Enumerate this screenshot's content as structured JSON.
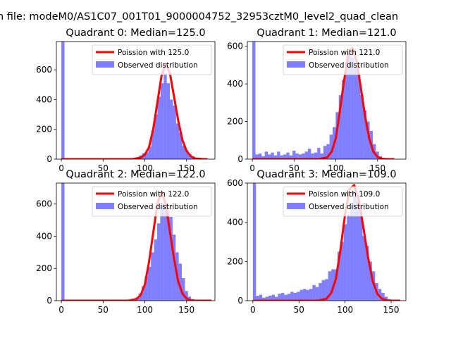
{
  "page_title": "n file: modeM0/AS1C07_001T01_9000004752_32953cztM0_level2_quad_clean",
  "colors": {
    "hist": "#0000ff",
    "hist_alpha": 0.5,
    "fit": "#ff0000",
    "axis": "#000000"
  },
  "chart_data": [
    {
      "type": "bar",
      "title": "Quadrant 0: Median=125.0",
      "median": 125.0,
      "xlim": [
        -6,
        184
      ],
      "ylim": [
        0,
        790
      ],
      "xticks": [
        0,
        50,
        100,
        150
      ],
      "yticks": [
        0,
        200,
        400,
        600
      ],
      "bin_width": 3.7,
      "legend": {
        "position": "upper-right",
        "fit_label": "Poission with 125.0",
        "hist_label": "Observed distribution"
      },
      "zero_spike": 790,
      "fit_line": {
        "x": [
          0,
          85,
          95,
          100,
          105,
          110,
          115,
          120,
          125,
          130,
          135,
          140,
          145,
          150,
          155,
          160,
          170,
          175
        ],
        "y": [
          0,
          0,
          10,
          30,
          80,
          200,
          380,
          560,
          640,
          580,
          420,
          260,
          130,
          55,
          20,
          5,
          0,
          0
        ]
      },
      "hist": {
        "x": [
          93,
          96.7,
          100.4,
          104.1,
          107.8,
          111.5,
          115.2,
          118.9,
          122.6,
          126.3,
          130,
          133.7,
          137.4,
          141.1,
          144.8,
          148.5,
          152.2,
          155.9,
          159.6,
          163.3
        ],
        "y": [
          25,
          40,
          45,
          85,
          195,
          300,
          420,
          510,
          580,
          510,
          400,
          360,
          240,
          180,
          90,
          60,
          35,
          20,
          10,
          5
        ]
      }
    },
    {
      "type": "bar",
      "title": "Quadrant 1: Median=121.0",
      "median": 121.0,
      "xlim": [
        -6,
        184
      ],
      "ylim": [
        0,
        625
      ],
      "xticks": [
        0,
        50,
        100,
        150
      ],
      "yticks": [
        0,
        200,
        400,
        600
      ],
      "bin_width": 3.7,
      "legend": {
        "position": "upper-right",
        "fit_label": "Poission with 121.0",
        "hist_label": "Observed distribution"
      },
      "zero_spike": 625,
      "fit_line": {
        "x": [
          0,
          80,
          90,
          95,
          100,
          105,
          110,
          115,
          120,
          125,
          130,
          135,
          140,
          145,
          150,
          155,
          160,
          170
        ],
        "y": [
          0,
          0,
          10,
          40,
          110,
          260,
          420,
          560,
          590,
          520,
          380,
          230,
          110,
          40,
          12,
          3,
          0,
          0
        ]
      },
      "hist": {
        "x": [
          3.7,
          7.4,
          11.1,
          14.8,
          18.5,
          22.2,
          25.9,
          29.6,
          33.3,
          37,
          40.7,
          44.4,
          48.1,
          51.8,
          55.5,
          59.2,
          62.9,
          66.6,
          70.3,
          74,
          77.7,
          81.4,
          85.1,
          88.8,
          92.5,
          96.2,
          99.9,
          103.6,
          107.3,
          111,
          114.7,
          118.4,
          122.1,
          125.8,
          129.5,
          133.2,
          136.9,
          140.6,
          144.3,
          148,
          151.7,
          155.4
        ],
        "y": [
          25,
          30,
          15,
          40,
          25,
          35,
          20,
          40,
          20,
          25,
          35,
          20,
          45,
          30,
          25,
          30,
          40,
          55,
          30,
          35,
          60,
          30,
          70,
          80,
          130,
          170,
          250,
          340,
          420,
          520,
          560,
          540,
          500,
          450,
          340,
          260,
          200,
          150,
          80,
          40,
          15,
          5
        ]
      }
    },
    {
      "type": "bar",
      "title": "Quadrant 2: Median=122.0",
      "median": 122.0,
      "xlim": [
        -6,
        184
      ],
      "ylim": [
        0,
        730
      ],
      "xticks": [
        0,
        50,
        100,
        150
      ],
      "yticks": [
        0,
        200,
        400,
        600
      ],
      "bin_width": 3.7,
      "legend": {
        "position": "upper-right",
        "fit_label": "Poission with 122.0",
        "hist_label": "Observed distribution"
      },
      "zero_spike": 730,
      "fit_line": {
        "x": [
          0,
          80,
          90,
          95,
          100,
          105,
          110,
          115,
          120,
          125,
          130,
          135,
          140,
          145,
          150,
          155,
          160,
          180
        ],
        "y": [
          0,
          0,
          10,
          35,
          100,
          240,
          420,
          600,
          680,
          600,
          430,
          260,
          120,
          45,
          12,
          3,
          0,
          0
        ]
      },
      "hist": {
        "x": [
          88.8,
          92.5,
          96.2,
          99.9,
          103.6,
          107.3,
          111,
          114.7,
          118.4,
          122.1,
          125.8,
          129.5,
          133.2,
          136.9,
          140.6,
          144.3,
          148,
          151.7,
          155.4,
          159.1
        ],
        "y": [
          20,
          45,
          90,
          150,
          210,
          300,
          380,
          480,
          600,
          610,
          560,
          520,
          410,
          300,
          230,
          140,
          60,
          25,
          10,
          5
        ]
      }
    },
    {
      "type": "bar",
      "title": "Quadrant 3: Median=109.0",
      "median": 109.0,
      "xlim": [
        -6,
        166
      ],
      "ylim": [
        0,
        600
      ],
      "xticks": [
        0,
        50,
        100,
        150
      ],
      "yticks": [
        0,
        200,
        400,
        600
      ],
      "bin_width": 3.4,
      "legend": {
        "position": "upper-right",
        "fit_label": "Poission with 109.0",
        "hist_label": "Observed distribution"
      },
      "zero_spike": 600,
      "fit_line": {
        "x": [
          0,
          70,
          80,
          85,
          90,
          95,
          100,
          105,
          110,
          115,
          120,
          125,
          130,
          135,
          140,
          145,
          150,
          160
        ],
        "y": [
          0,
          0,
          10,
          40,
          110,
          260,
          440,
          570,
          590,
          510,
          370,
          220,
          100,
          35,
          10,
          2,
          0,
          0
        ]
      },
      "hist": {
        "x": [
          3.4,
          6.8,
          10.2,
          13.6,
          17,
          20.4,
          23.8,
          27.2,
          30.6,
          34,
          37.4,
          40.8,
          44.2,
          47.6,
          51,
          54.4,
          57.8,
          61.2,
          64.6,
          68,
          71.4,
          74.8,
          78.2,
          81.6,
          85,
          88.4,
          91.8,
          95.2,
          98.6,
          102,
          105.4,
          108.8,
          112.2,
          115.6,
          119,
          122.4,
          125.8,
          129.2,
          132.6,
          136,
          139.4,
          142.8,
          146.2
        ],
        "y": [
          25,
          30,
          15,
          20,
          25,
          30,
          20,
          35,
          40,
          30,
          35,
          45,
          40,
          45,
          55,
          60,
          55,
          60,
          80,
          70,
          90,
          105,
          110,
          150,
          160,
          160,
          250,
          300,
          390,
          440,
          500,
          560,
          510,
          460,
          330,
          280,
          200,
          150,
          90,
          60,
          40,
          20,
          8
        ]
      }
    }
  ]
}
